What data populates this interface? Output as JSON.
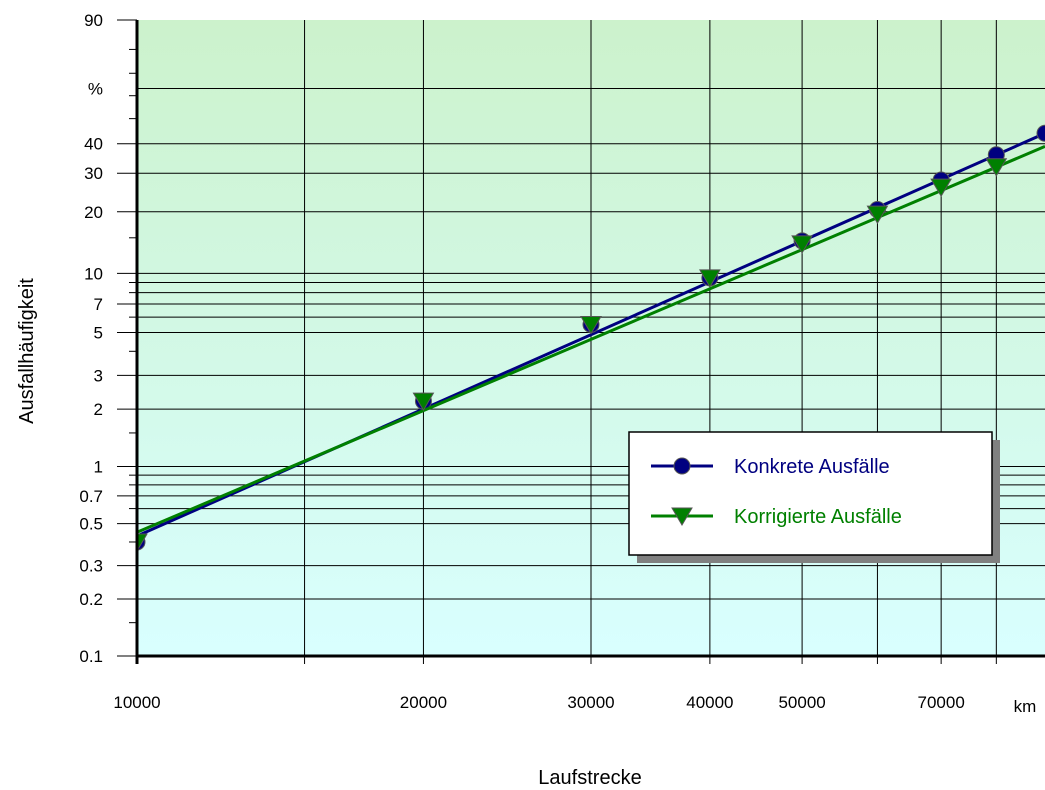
{
  "chart_data": {
    "type": "line",
    "xlabel": "Laufstrecke",
    "ylabel": "Ausfallhäufigkeit",
    "x_unit": "km",
    "y_unit": "%",
    "x_scale": "log",
    "y_scale": "weibull",
    "xlim": [
      10000,
      90000
    ],
    "ylim": [
      0.1,
      90
    ],
    "x_tick_labels": [
      "10000",
      "20000",
      "30000",
      "40000",
      "50000",
      "70000"
    ],
    "x_grid_values": [
      10000,
      15000,
      20000,
      30000,
      40000,
      50000,
      60000,
      70000,
      80000
    ],
    "y_tick_labels": [
      "0.1",
      "0.2",
      "0.3",
      "0.5",
      "0.7",
      "1",
      "2",
      "3",
      "5",
      "7",
      "10",
      "20",
      "30",
      "40",
      "90"
    ],
    "y_grid_values": [
      0.1,
      0.2,
      0.3,
      0.5,
      0.6,
      0.7,
      0.8,
      0.9,
      1,
      2,
      3,
      5,
      6,
      7,
      8,
      9,
      10,
      20,
      30,
      40,
      63.2
    ],
    "series": [
      {
        "name": "Konkrete Ausfälle",
        "color": "#000080",
        "marker": "circle",
        "x": [
          10000,
          20000,
          30000,
          40000,
          50000,
          60000,
          70000,
          80000,
          90000
        ],
        "y": [
          0.4,
          2.2,
          5.5,
          9.5,
          14.5,
          20.5,
          28,
          36,
          44
        ],
        "fit": [
          [
            10000,
            0.43
          ],
          [
            90000,
            44
          ]
        ]
      },
      {
        "name": "Korrigierte Ausfälle",
        "color": "#008000",
        "marker": "triangle-down",
        "x": [
          10000,
          20000,
          30000,
          40000,
          50000,
          60000,
          70000,
          80000
        ],
        "y": [
          0.4,
          2.2,
          5.5,
          9.5,
          14,
          19.5,
          26,
          32
        ],
        "fit": [
          [
            10000,
            0.45
          ],
          [
            90000,
            39
          ]
        ]
      }
    ],
    "legend_position": "lower-right",
    "grid": true,
    "background": {
      "top": "#ccf2cc",
      "bottom": "#d9ffff"
    }
  }
}
